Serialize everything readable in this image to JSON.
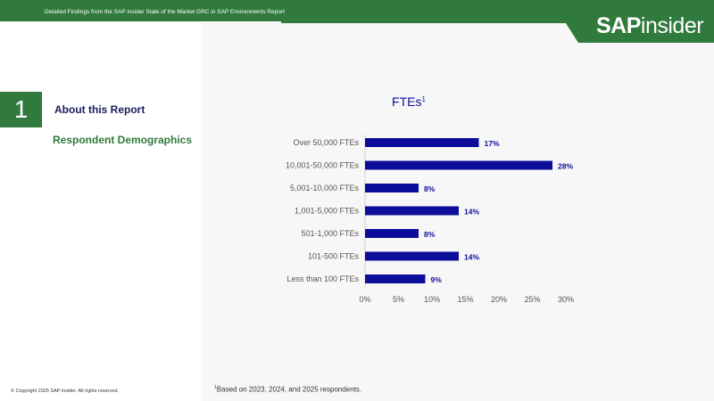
{
  "header": {
    "report_title": "Detailed Findings from the SAP insider State of the Market GRC in SAP Environments Report",
    "logo_bold": "SAP",
    "logo_light": "insider"
  },
  "section": {
    "number": "1",
    "title": "About this Report",
    "subtitle": "Respondent Demographics"
  },
  "footer": {
    "copyright": "© Copyright 2025 SAP insider. All rights reserved.",
    "footnote_marker": "1",
    "footnote_text": "Based on 2023, 2024, and 2025 respondents."
  },
  "colors": {
    "brand_green": "#2f7a3c",
    "bar_color": "#0d0d9c",
    "title_navy": "#1a1a5e"
  },
  "chart_data": {
    "type": "bar",
    "orientation": "horizontal",
    "title": "FTEs",
    "title_superscript": "1",
    "categories": [
      "Over 50,000 FTEs",
      "10,001-50,000 FTEs",
      "5,001-10,000 FTEs",
      "1,001-5,000 FTEs",
      "501-1,000 FTEs",
      "101-500 FTEs",
      "Less than 100 FTEs"
    ],
    "values": [
      17,
      28,
      8,
      14,
      8,
      14,
      9
    ],
    "value_labels": [
      "17%",
      "28%",
      "8%",
      "14%",
      "8%",
      "14%",
      "9%"
    ],
    "xlim": [
      0,
      30
    ],
    "x_ticks": [
      0,
      5,
      10,
      15,
      20,
      25,
      30
    ],
    "x_tick_labels": [
      "0%",
      "5%",
      "10%",
      "15%",
      "20%",
      "25%",
      "30%"
    ],
    "grid": false,
    "legend": "none"
  }
}
